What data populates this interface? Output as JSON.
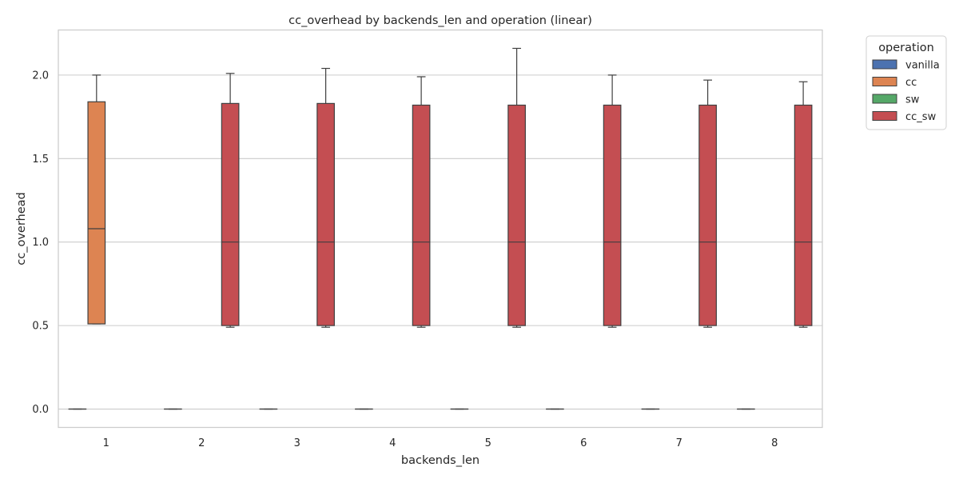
{
  "chart_data": {
    "type": "box",
    "title": "cc_overhead by backends_len and operation (linear)",
    "xlabel": "backends_len",
    "ylabel": "cc_overhead",
    "categories": [
      "1",
      "2",
      "3",
      "4",
      "5",
      "6",
      "7",
      "8"
    ],
    "ylim": [
      -0.11,
      2.27
    ],
    "yticks": [
      "0.0",
      "0.5",
      "1.0",
      "1.5",
      "2.0"
    ],
    "grid": "horizontal",
    "legend": {
      "title": "operation",
      "placement": "outside-top-right"
    },
    "series": [
      {
        "name": "vanilla",
        "color": "#4c72b0",
        "boxes": [
          {
            "category": "1",
            "min": 0,
            "q1": 0,
            "median": 0,
            "q3": 0,
            "max": 0
          },
          {
            "category": "2",
            "min": 0,
            "q1": 0,
            "median": 0,
            "q3": 0,
            "max": 0
          },
          {
            "category": "3",
            "min": 0,
            "q1": 0,
            "median": 0,
            "q3": 0,
            "max": 0
          },
          {
            "category": "4",
            "min": 0,
            "q1": 0,
            "median": 0,
            "q3": 0,
            "max": 0
          },
          {
            "category": "5",
            "min": 0,
            "q1": 0,
            "median": 0,
            "q3": 0,
            "max": 0
          },
          {
            "category": "6",
            "min": 0,
            "q1": 0,
            "median": 0,
            "q3": 0,
            "max": 0
          },
          {
            "category": "7",
            "min": 0,
            "q1": 0,
            "median": 0,
            "q3": 0,
            "max": 0
          },
          {
            "category": "8",
            "min": 0,
            "q1": 0,
            "median": 0,
            "q3": 0,
            "max": 0
          }
        ]
      },
      {
        "name": "cc",
        "color": "#dd8452",
        "boxes": [
          {
            "category": "1",
            "min": 0.51,
            "q1": 0.51,
            "median": 1.08,
            "q3": 1.84,
            "max": 2.0
          }
        ]
      },
      {
        "name": "sw",
        "color": "#55a868",
        "boxes": []
      },
      {
        "name": "cc_sw",
        "color": "#c44e52",
        "boxes": [
          {
            "category": "2",
            "min": 0.49,
            "q1": 0.5,
            "median": 1.0,
            "q3": 1.83,
            "max": 2.01
          },
          {
            "category": "3",
            "min": 0.49,
            "q1": 0.5,
            "median": 1.0,
            "q3": 1.83,
            "max": 2.04
          },
          {
            "category": "4",
            "min": 0.49,
            "q1": 0.5,
            "median": 1.0,
            "q3": 1.82,
            "max": 1.99
          },
          {
            "category": "5",
            "min": 0.49,
            "q1": 0.5,
            "median": 1.0,
            "q3": 1.82,
            "max": 2.16
          },
          {
            "category": "6",
            "min": 0.49,
            "q1": 0.5,
            "median": 1.0,
            "q3": 1.82,
            "max": 2.0
          },
          {
            "category": "7",
            "min": 0.49,
            "q1": 0.5,
            "median": 1.0,
            "q3": 1.82,
            "max": 1.97
          },
          {
            "category": "8",
            "min": 0.49,
            "q1": 0.5,
            "median": 1.0,
            "q3": 1.82,
            "max": 1.96
          }
        ]
      }
    ]
  }
}
